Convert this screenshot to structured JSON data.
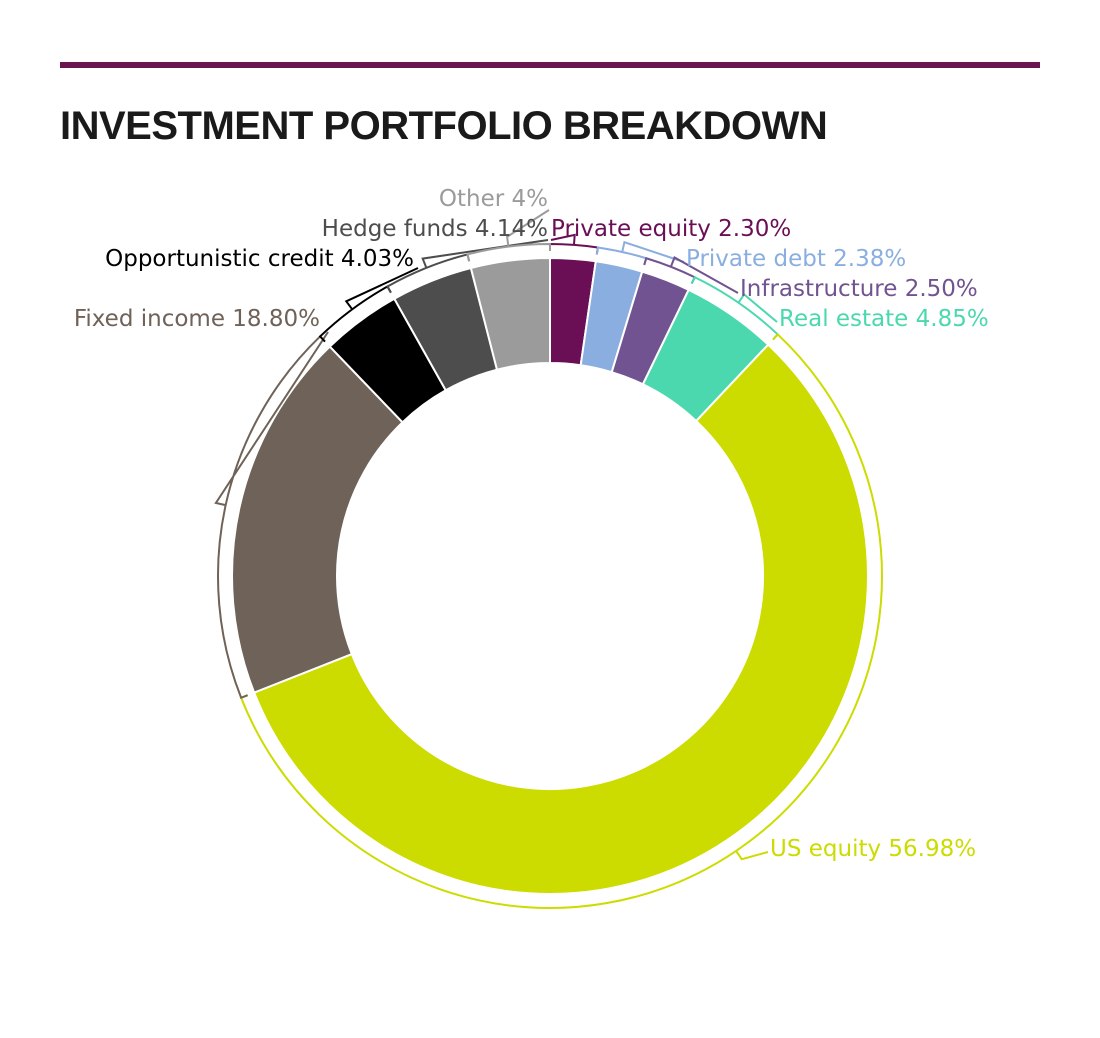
{
  "title": "INVESTMENT PORTFOLIO BREAKDOWN",
  "colors": {
    "rule": "#6a1450",
    "title": "#1a1a1a"
  },
  "chart_data": {
    "type": "pie",
    "style": "donut",
    "title": "INVESTMENT PORTFOLIO BREAKDOWN",
    "slices": [
      {
        "label": "Private equity",
        "value": 2.3,
        "text": "Private equity 2.30%",
        "color": "#6a0f55"
      },
      {
        "label": "Private debt",
        "value": 2.38,
        "text": "Private debt 2.38%",
        "color": "#8aaee0"
      },
      {
        "label": "Infrastructure",
        "value": 2.5,
        "text": "Infrastructure 2.50%",
        "color": "#715391"
      },
      {
        "label": "Real estate",
        "value": 4.85,
        "text": "Real estate 4.85%",
        "color": "#4cd8ae"
      },
      {
        "label": "US equity",
        "value": 56.98,
        "text": "US equity 56.98%",
        "color": "#ccdc00"
      },
      {
        "label": "Fixed income",
        "value": 18.8,
        "text": "Fixed income 18.80%",
        "color": "#6f6258"
      },
      {
        "label": "Opportunistic credit",
        "value": 4.03,
        "text": "Opportunistic credit 4.03%",
        "color": "#000000"
      },
      {
        "label": "Hedge funds",
        "value": 4.14,
        "text": "Hedge funds 4.14%",
        "color": "#4d4d4d"
      },
      {
        "label": "Other",
        "value": 4,
        "text": "Other 4%",
        "color": "#9b9b9b"
      }
    ]
  }
}
